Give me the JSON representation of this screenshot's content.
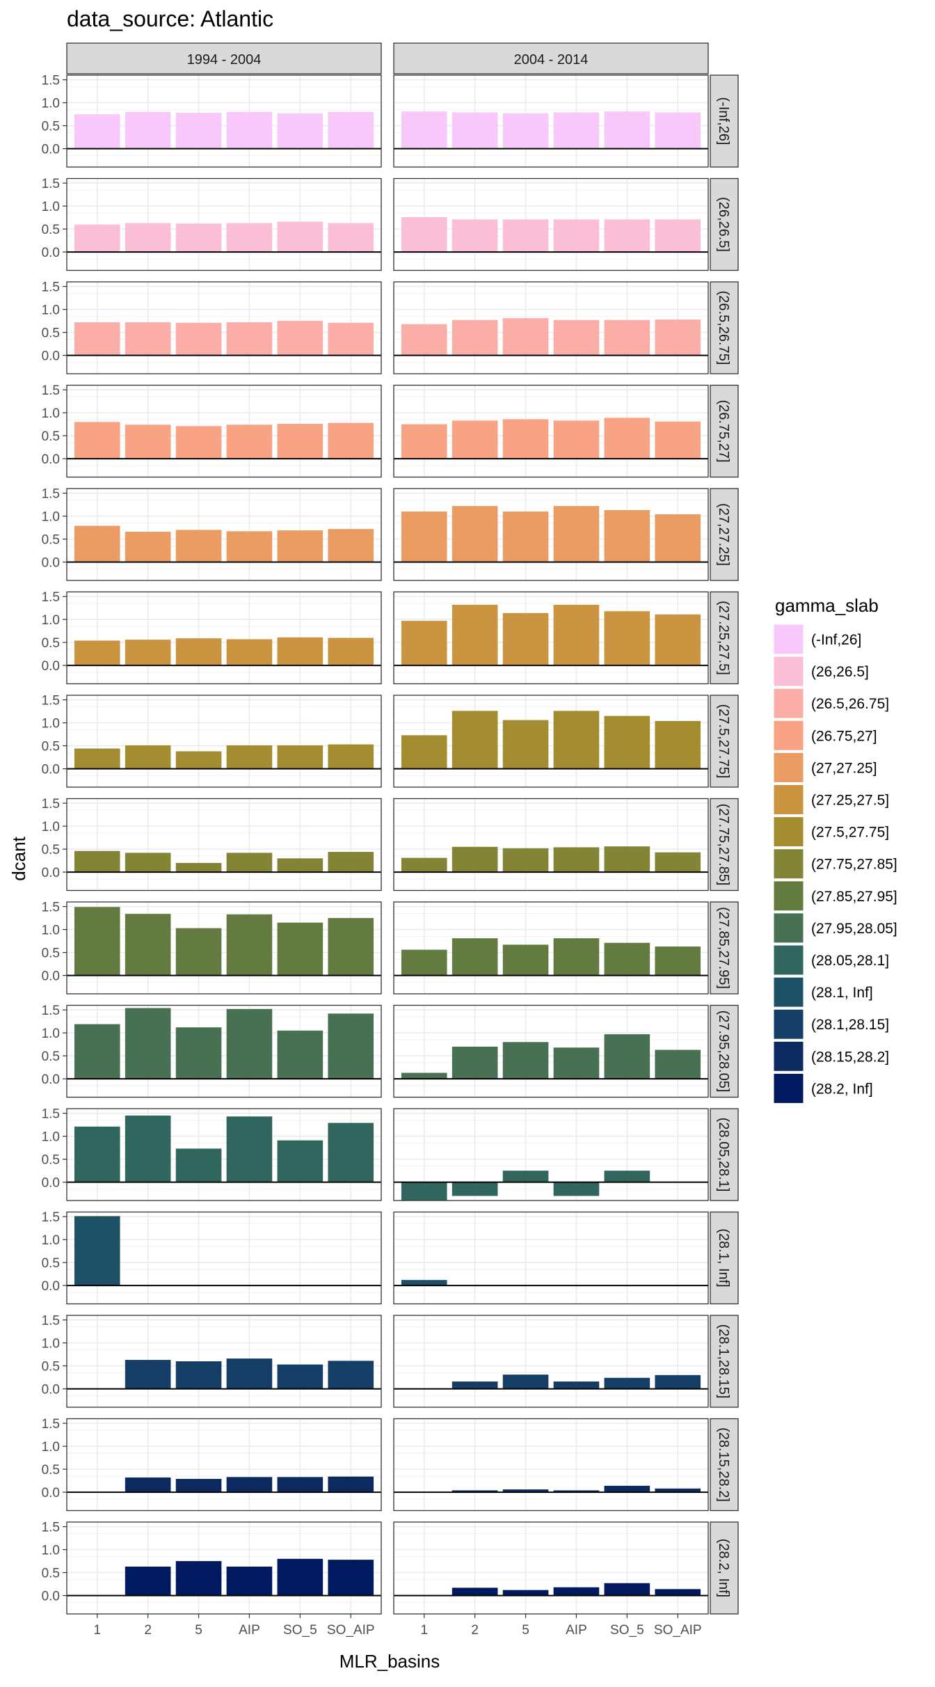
{
  "chart_data": {
    "type": "bar",
    "title": "data_source: Atlantic",
    "xlabel": "MLR_basins",
    "ylabel": "dcant",
    "categories": [
      "1",
      "2",
      "5",
      "AIP",
      "SO_5",
      "SO_AIP"
    ],
    "ylim": [
      -0.4,
      1.6
    ],
    "yticks": [
      "0.0",
      "0.5",
      "1.0",
      "1.5"
    ],
    "ytick_values": [
      0,
      0.5,
      1.0,
      1.5
    ],
    "grid": true,
    "legend": {
      "title": "gamma_slab",
      "position": "right",
      "entries": [
        {
          "label": "(-Inf,26]",
          "color": "#F9C8FA"
        },
        {
          "label": "(26,26.5]",
          "color": "#FBBED7"
        },
        {
          "label": "(26.5,26.75]",
          "color": "#FBADA8"
        },
        {
          "label": "(26.75,27]",
          "color": "#F8A383"
        },
        {
          "label": "(27,27.25]",
          "color": "#EA9C63"
        },
        {
          "label": "(27.25,27.5]",
          "color": "#CB9441"
        },
        {
          "label": "(27.5,27.75]",
          "color": "#A48C31"
        },
        {
          "label": "(27.75,27.85]",
          "color": "#838436"
        },
        {
          "label": "(27.85,27.95]",
          "color": "#637B40"
        },
        {
          "label": "(27.95,28.05]",
          "color": "#477152"
        },
        {
          "label": "(28.05,28.1]",
          "color": "#30665E"
        },
        {
          "label": "(28.1, Inf]",
          "color": "#1F5166"
        },
        {
          "label": "(28.1,28.15]",
          "color": "#153E66"
        },
        {
          "label": "(28.15,28.2]",
          "color": "#0C2A5F"
        },
        {
          "label": "(28.2, Inf]",
          "color": "#00195F"
        }
      ]
    },
    "columns": [
      "1994 - 2004",
      "2004 - 2014"
    ],
    "rows": [
      {
        "strip": "(-Inf,26]",
        "color": "#F9C8FA",
        "values": [
          [
            0.75,
            0.8,
            0.78,
            0.8,
            0.77,
            0.8
          ],
          [
            0.81,
            0.79,
            0.77,
            0.79,
            0.81,
            0.79
          ]
        ]
      },
      {
        "strip": "(26,26.5]",
        "color": "#FBBED7",
        "values": [
          [
            0.6,
            0.63,
            0.62,
            0.63,
            0.66,
            0.63
          ],
          [
            0.76,
            0.71,
            0.71,
            0.71,
            0.71,
            0.71
          ]
        ]
      },
      {
        "strip": "(26.5,26.75]",
        "color": "#FBADA8",
        "values": [
          [
            0.72,
            0.72,
            0.71,
            0.72,
            0.75,
            0.71
          ],
          [
            0.68,
            0.77,
            0.81,
            0.77,
            0.77,
            0.78
          ]
        ]
      },
      {
        "strip": "(26.75,27]",
        "color": "#F8A383",
        "values": [
          [
            0.8,
            0.74,
            0.71,
            0.74,
            0.76,
            0.78
          ],
          [
            0.75,
            0.83,
            0.86,
            0.83,
            0.89,
            0.81
          ]
        ]
      },
      {
        "strip": "(27,27.25]",
        "color": "#EA9C63",
        "values": [
          [
            0.79,
            0.66,
            0.7,
            0.67,
            0.69,
            0.72
          ],
          [
            1.1,
            1.22,
            1.1,
            1.22,
            1.13,
            1.04
          ]
        ]
      },
      {
        "strip": "(27.25,27.5]",
        "color": "#CB9441",
        "values": [
          [
            0.54,
            0.56,
            0.59,
            0.57,
            0.61,
            0.6
          ],
          [
            0.97,
            1.32,
            1.14,
            1.32,
            1.18,
            1.11
          ]
        ]
      },
      {
        "strip": "(27.5,27.75]",
        "color": "#A48C31",
        "values": [
          [
            0.44,
            0.51,
            0.38,
            0.51,
            0.51,
            0.53
          ],
          [
            0.73,
            1.26,
            1.06,
            1.26,
            1.15,
            1.04
          ]
        ]
      },
      {
        "strip": "(27.75,27.85]",
        "color": "#838436",
        "values": [
          [
            0.46,
            0.42,
            0.2,
            0.42,
            0.3,
            0.44
          ],
          [
            0.31,
            0.55,
            0.52,
            0.54,
            0.56,
            0.43
          ]
        ]
      },
      {
        "strip": "(27.85,27.95]",
        "color": "#637B40",
        "values": [
          [
            1.49,
            1.34,
            1.03,
            1.33,
            1.15,
            1.25
          ],
          [
            0.56,
            0.81,
            0.67,
            0.81,
            0.71,
            0.63
          ]
        ]
      },
      {
        "strip": "(27.95,28.05]",
        "color": "#477152",
        "values": [
          [
            1.19,
            1.54,
            1.12,
            1.52,
            1.05,
            1.42
          ],
          [
            0.13,
            0.7,
            0.8,
            0.68,
            0.97,
            0.63
          ]
        ]
      },
      {
        "strip": "(28.05,28.1]",
        "color": "#30665E",
        "values": [
          [
            1.21,
            1.45,
            0.73,
            1.43,
            0.91,
            1.29
          ],
          [
            -0.4,
            -0.3,
            0.25,
            -0.3,
            0.25,
            null
          ]
        ]
      },
      {
        "strip": "(28.1, Inf]",
        "color": "#1F5166",
        "values": [
          [
            1.51,
            null,
            null,
            null,
            null,
            null
          ],
          [
            0.12,
            null,
            null,
            null,
            null,
            null
          ]
        ]
      },
      {
        "strip": "(28.1,28.15]",
        "color": "#153E66",
        "values": [
          [
            null,
            0.63,
            0.6,
            0.66,
            0.53,
            0.61
          ],
          [
            null,
            0.16,
            0.31,
            0.16,
            0.24,
            0.3
          ]
        ]
      },
      {
        "strip": "(28.15,28.2]",
        "color": "#0C2A5F",
        "values": [
          [
            null,
            0.32,
            0.29,
            0.33,
            0.33,
            0.34
          ],
          [
            null,
            0.04,
            0.06,
            0.04,
            0.14,
            0.08
          ]
        ]
      },
      {
        "strip": "(28.2, Inf]",
        "color": "#00195F",
        "values": [
          [
            null,
            0.63,
            0.75,
            0.63,
            0.8,
            0.78
          ],
          [
            null,
            0.17,
            0.12,
            0.18,
            0.27,
            0.14
          ]
        ]
      }
    ]
  }
}
